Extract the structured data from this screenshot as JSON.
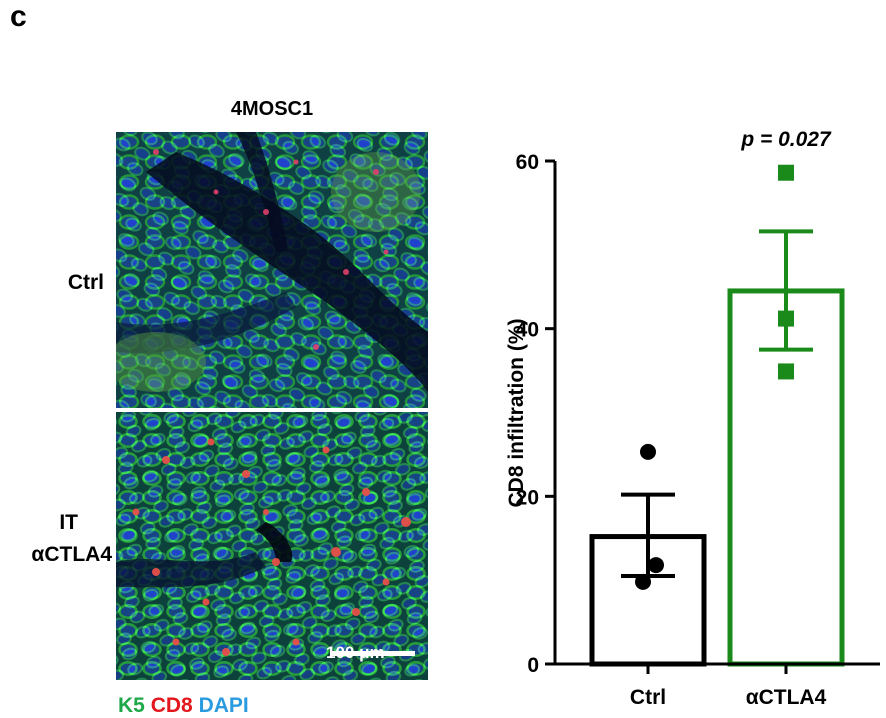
{
  "figure": {
    "panel_letter": "c",
    "image_title": "4MOSC1",
    "row_labels": {
      "ctrl": "Ctrl",
      "it_line1": "IT",
      "it_line2": "αCTLA4"
    },
    "scalebar": "100 μm",
    "legend": [
      {
        "text": "K5",
        "color": "#1fa84a"
      },
      {
        "text": "CD8",
        "color": "#e3171b"
      },
      {
        "text": "DAPI",
        "color": "#2b9be0"
      }
    ]
  },
  "colors": {
    "ctrl": "#000000",
    "actla4": "#1a8a1a"
  },
  "chart_data": {
    "type": "bar",
    "categories": [
      "Ctrl",
      "αCTLA4"
    ],
    "ylabel": "CD8 infiltration (%)",
    "ylim": [
      0,
      60
    ],
    "yticks": [
      0,
      20,
      40,
      60
    ],
    "annotation": "p = 0.027",
    "series": [
      {
        "values": [
          15.2,
          44.5
        ],
        "sem_low": [
          10.5,
          37.5
        ],
        "sem_high": [
          20.2,
          51.6
        ],
        "points": [
          [
            25.3,
            11.8,
            9.8
          ],
          [
            58.6,
            41.2,
            34.9
          ]
        ]
      }
    ]
  }
}
